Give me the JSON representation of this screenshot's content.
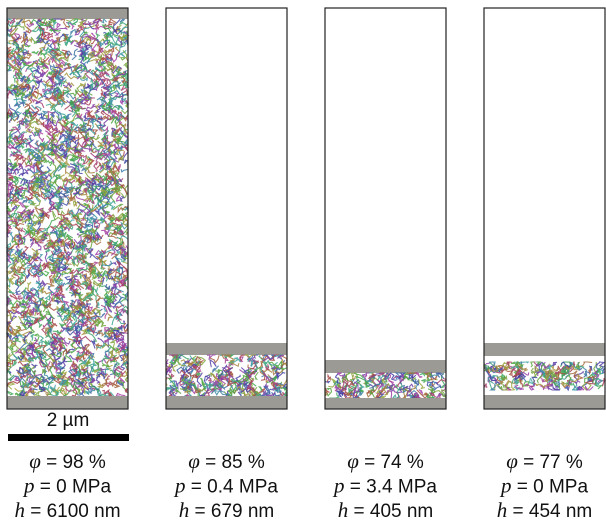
{
  "scale_bar": "2 µm",
  "panels": [
    {
      "lines": [
        {
          "symbol": "φ",
          "text": " = 98 %"
        },
        {
          "symbol": "p",
          "text": " = 0 MPa"
        },
        {
          "symbol": "h",
          "text": " = 6100 nm"
        }
      ]
    },
    {
      "lines": [
        {
          "symbol": "φ",
          "text": " = 85 %"
        },
        {
          "symbol": "p",
          "text": " = 0.4 MPa"
        },
        {
          "symbol": "h",
          "text": " = 679 nm"
        }
      ]
    },
    {
      "lines": [
        {
          "symbol": "φ",
          "text": " = 74 %"
        },
        {
          "symbol": "p",
          "text": " = 3.4 MPa"
        },
        {
          "symbol": "h",
          "text": " = 405 nm"
        }
      ]
    },
    {
      "lines": [
        {
          "symbol": "φ",
          "text": " = 77 %"
        },
        {
          "symbol": "p",
          "text": " = 0 MPa"
        },
        {
          "symbol": "h",
          "text": " = 454 nm"
        }
      ]
    }
  ]
}
